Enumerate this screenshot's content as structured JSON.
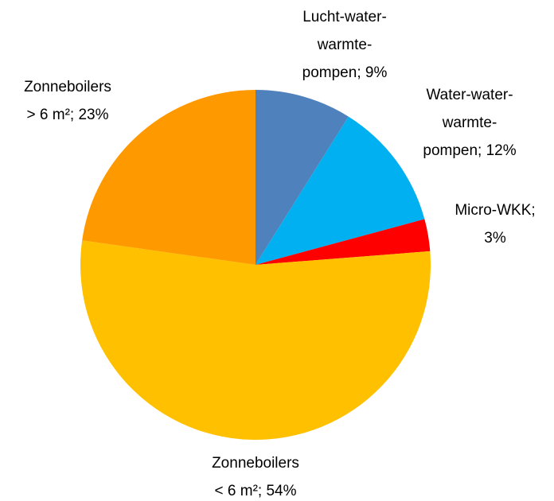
{
  "chart_data": {
    "type": "pie",
    "labels": [
      [
        "Lucht-water-",
        "warmte-",
        "pompen; 9%"
      ],
      [
        "Water-water-",
        "warmte-",
        "pompen; 12%"
      ],
      [
        "Micro-WKK;",
        "3%"
      ],
      [
        "Zonneboilers",
        "< 6 m²; 54%"
      ],
      [
        "Zonneboilers",
        "> 6 m²; 23%"
      ]
    ],
    "values": [
      9,
      12,
      3,
      54,
      23
    ],
    "colors": [
      "#4f81bd",
      "#00b0f0",
      "#ff0000",
      "#ffc000",
      "#ff9900"
    ]
  }
}
